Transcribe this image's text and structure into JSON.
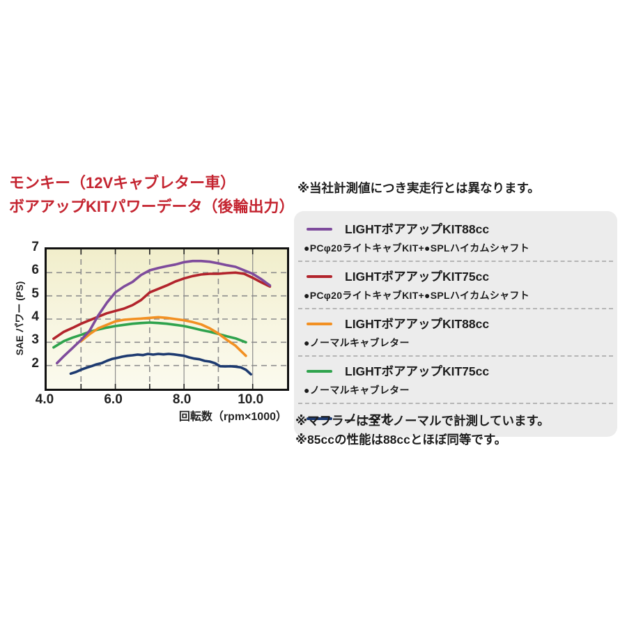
{
  "title": {
    "line1": "モンキー（12Vキャブレター車）",
    "line2": "ボアアップKITパワーデータ（後輪出力）",
    "color": "#c42430"
  },
  "note_top": "※当社計測値につき実走行とは異なります。",
  "notes_bottom": [
    "※マフラーは全てノーマルで計測しています。",
    "※85ccの性能は88ccとほぼ同等です。"
  ],
  "legend": {
    "items": [
      {
        "label": "LIGHTボアアップKIT88cc",
        "sub": "●PCφ20ライトキャブKIT+●SPLハイカムシャフト",
        "color": "#7e4b9c"
      },
      {
        "label": "LIGHTボアアップKIT75cc",
        "sub": "●PCφ20ライトキャブKIT+●SPLハイカムシャフト",
        "color": "#b2242c"
      },
      {
        "label": "LIGHTボアアップKIT88cc",
        "sub": "●ノーマルキャブレター",
        "color": "#f29022"
      },
      {
        "label": "LIGHTボアアップKIT75cc",
        "sub": "●ノーマルキャブレター",
        "color": "#2fa34d"
      },
      {
        "label": "ノーマル",
        "sub": "",
        "color": "#1d3a70"
      }
    ],
    "separator_color": "#b5b5b5",
    "panel_color": "#ececec"
  },
  "chart_data": {
    "type": "line",
    "title": "",
    "xlabel": "回転数（rpm×1000）",
    "ylabel": "SAE パワー (PS)",
    "xlim": [
      4,
      11
    ],
    "ylim": [
      1,
      7
    ],
    "x_tick_values": [
      4,
      6,
      8,
      10
    ],
    "x_tick_labels": [
      "4.0",
      "6.0",
      "8.0",
      "10.0"
    ],
    "y_tick_values": [
      2,
      3,
      4,
      5,
      6,
      7
    ],
    "y_tick_labels": [
      "2",
      "3",
      "4",
      "5",
      "6",
      "7"
    ],
    "x_solid_gridlines": [
      6,
      8,
      10
    ],
    "x_dashed_gridlines": [
      5,
      7,
      9
    ],
    "y_dashed_gridlines": [
      2,
      3,
      4,
      5,
      6
    ],
    "minor_ticks_x": [
      5,
      6,
      7,
      8,
      9,
      10
    ],
    "grid_color": "#8c8c8c",
    "frame_color": "#111111",
    "bg_gradient": [
      "#f1eecb",
      "#f7f5e0",
      "#fbfaee"
    ],
    "legend_position": "right-panel",
    "series": [
      {
        "name": "LIGHTボアアップKIT75cc（PCφ20ライトキャブKIT+SPLハイカムシャフト）",
        "color": "#b2242c",
        "points": [
          [
            4.2,
            3.15
          ],
          [
            4.5,
            3.45
          ],
          [
            4.75,
            3.62
          ],
          [
            5.0,
            3.8
          ],
          [
            5.25,
            3.95
          ],
          [
            5.5,
            4.1
          ],
          [
            5.75,
            4.25
          ],
          [
            6.0,
            4.35
          ],
          [
            6.25,
            4.45
          ],
          [
            6.5,
            4.6
          ],
          [
            6.75,
            4.82
          ],
          [
            7.0,
            5.15
          ],
          [
            7.25,
            5.3
          ],
          [
            7.5,
            5.45
          ],
          [
            7.75,
            5.62
          ],
          [
            8.0,
            5.75
          ],
          [
            8.25,
            5.85
          ],
          [
            8.5,
            5.92
          ],
          [
            8.75,
            5.95
          ],
          [
            9.0,
            5.95
          ],
          [
            9.25,
            5.98
          ],
          [
            9.5,
            6.0
          ],
          [
            9.75,
            5.95
          ],
          [
            10.0,
            5.78
          ],
          [
            10.25,
            5.58
          ],
          [
            10.5,
            5.4
          ]
        ]
      },
      {
        "name": "LIGHTボアアップKIT75cc（ノーマルキャブレター）",
        "color": "#2fa34d",
        "points": [
          [
            4.2,
            2.78
          ],
          [
            4.5,
            3.05
          ],
          [
            4.75,
            3.2
          ],
          [
            5.0,
            3.32
          ],
          [
            5.25,
            3.45
          ],
          [
            5.5,
            3.55
          ],
          [
            5.75,
            3.63
          ],
          [
            6.0,
            3.7
          ],
          [
            6.25,
            3.75
          ],
          [
            6.5,
            3.8
          ],
          [
            6.75,
            3.83
          ],
          [
            7.0,
            3.85
          ],
          [
            7.25,
            3.83
          ],
          [
            7.5,
            3.8
          ],
          [
            7.75,
            3.75
          ],
          [
            8.0,
            3.7
          ],
          [
            8.25,
            3.62
          ],
          [
            8.5,
            3.53
          ],
          [
            8.75,
            3.45
          ],
          [
            9.0,
            3.36
          ],
          [
            9.25,
            3.26
          ],
          [
            9.5,
            3.17
          ],
          [
            9.8,
            3.0
          ]
        ]
      },
      {
        "name": "LIGHTボアアップKIT88cc（ノーマルキャブレター）",
        "color": "#f29022",
        "points": [
          [
            5.0,
            3.05
          ],
          [
            5.25,
            3.35
          ],
          [
            5.5,
            3.6
          ],
          [
            5.75,
            3.75
          ],
          [
            6.0,
            3.9
          ],
          [
            6.25,
            3.97
          ],
          [
            6.5,
            4.0
          ],
          [
            6.75,
            4.02
          ],
          [
            7.0,
            4.05
          ],
          [
            7.25,
            4.08
          ],
          [
            7.5,
            4.05
          ],
          [
            7.75,
            4.0
          ],
          [
            8.0,
            3.95
          ],
          [
            8.25,
            3.87
          ],
          [
            8.5,
            3.77
          ],
          [
            8.75,
            3.6
          ],
          [
            9.0,
            3.38
          ],
          [
            9.25,
            3.1
          ],
          [
            9.5,
            2.85
          ],
          [
            9.8,
            2.42
          ]
        ]
      },
      {
        "name": "LIGHTボアアップKIT88cc（PCφ20ライトキャブKIT+SPLハイカムシャフト）",
        "color": "#7e4b9c",
        "points": [
          [
            4.3,
            2.1
          ],
          [
            4.5,
            2.4
          ],
          [
            4.75,
            2.75
          ],
          [
            5.0,
            3.1
          ],
          [
            5.25,
            3.5
          ],
          [
            5.5,
            4.15
          ],
          [
            5.75,
            4.7
          ],
          [
            6.0,
            5.15
          ],
          [
            6.25,
            5.4
          ],
          [
            6.5,
            5.6
          ],
          [
            6.75,
            5.9
          ],
          [
            7.0,
            6.1
          ],
          [
            7.25,
            6.2
          ],
          [
            7.5,
            6.28
          ],
          [
            7.75,
            6.35
          ],
          [
            8.0,
            6.45
          ],
          [
            8.25,
            6.5
          ],
          [
            8.5,
            6.5
          ],
          [
            8.75,
            6.47
          ],
          [
            9.0,
            6.4
          ],
          [
            9.25,
            6.32
          ],
          [
            9.5,
            6.25
          ],
          [
            9.75,
            6.1
          ],
          [
            10.0,
            5.95
          ],
          [
            10.25,
            5.72
          ],
          [
            10.5,
            5.45
          ]
        ]
      },
      {
        "name": "ノーマル",
        "color": "#1d3a70",
        "points": [
          [
            4.7,
            1.65
          ],
          [
            4.85,
            1.72
          ],
          [
            5.0,
            1.82
          ],
          [
            5.15,
            1.9
          ],
          [
            5.3,
            1.97
          ],
          [
            5.45,
            2.05
          ],
          [
            5.6,
            2.1
          ],
          [
            5.75,
            2.2
          ],
          [
            5.9,
            2.28
          ],
          [
            6.05,
            2.33
          ],
          [
            6.2,
            2.38
          ],
          [
            6.35,
            2.42
          ],
          [
            6.5,
            2.44
          ],
          [
            6.65,
            2.47
          ],
          [
            6.8,
            2.45
          ],
          [
            6.95,
            2.5
          ],
          [
            7.1,
            2.47
          ],
          [
            7.25,
            2.5
          ],
          [
            7.4,
            2.48
          ],
          [
            7.55,
            2.5
          ],
          [
            7.7,
            2.48
          ],
          [
            7.85,
            2.45
          ],
          [
            8.0,
            2.42
          ],
          [
            8.15,
            2.35
          ],
          [
            8.3,
            2.3
          ],
          [
            8.45,
            2.27
          ],
          [
            8.6,
            2.2
          ],
          [
            8.75,
            2.17
          ],
          [
            8.9,
            2.1
          ],
          [
            9.05,
            1.97
          ],
          [
            9.2,
            1.96
          ],
          [
            9.35,
            1.97
          ],
          [
            9.5,
            1.95
          ],
          [
            9.65,
            1.92
          ],
          [
            9.8,
            1.82
          ],
          [
            9.95,
            1.62
          ]
        ]
      }
    ]
  }
}
